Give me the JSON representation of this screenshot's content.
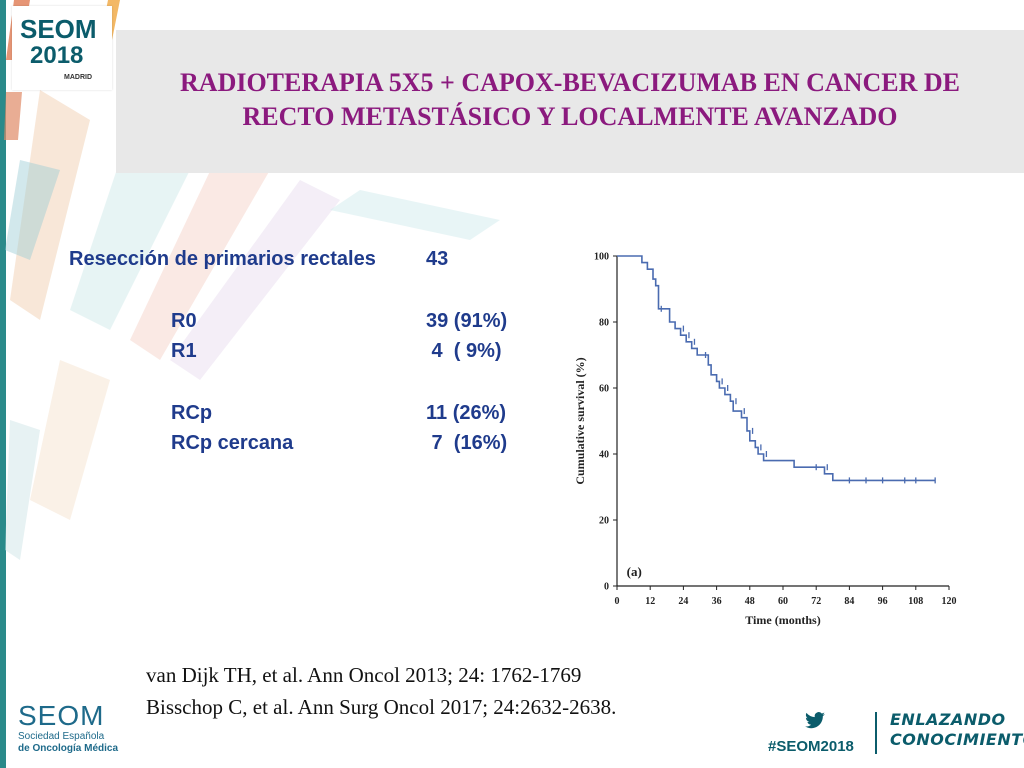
{
  "logo": {
    "brand": "SEOM",
    "year": "2018",
    "city": "MADRID"
  },
  "title_line1": "RADIOTERAPIA 5X5 + CAPOX-BEVACIZUMAB EN CANCER DE",
  "title_line2": "RECTO METASTÁSICO Y LOCALMENTE AVANZADO",
  "table": {
    "header_label": "Resección de primarios rectales",
    "header_value": "43",
    "rows": [
      {
        "label": "R0",
        "value": "39 (91%)"
      },
      {
        "label": "R1",
        "value": " 4  ( 9%)"
      },
      {
        "label": "RCp",
        "value": "11 (26%)"
      },
      {
        "label": "RCp cercana",
        "value": " 7  (16%)"
      }
    ]
  },
  "references": [
    "van Dijk TH, et al. Ann Oncol 2013; 24: 1762-1769",
    "Bisschop C, et al. Ann Surg Oncol 2017; 24:2632-2638."
  ],
  "footer": {
    "brand": "SEOM",
    "sub_line1": "Sociedad  Española",
    "sub_line2": "de Oncología Médica",
    "hashtag": "#SEOM2018",
    "slogan_line1": "ENLAZANDO",
    "slogan_line2": "CONOCIMIENTO"
  },
  "colors": {
    "title": "#8b1a7e",
    "table_text": "#1f3b8c",
    "curve": "#4a6bb0",
    "teal": "#0b5c6b"
  },
  "chart_data": {
    "type": "line",
    "panel_label": "(a)",
    "xlabel": "Time (months)",
    "ylabel": "Cumulative survival (%)",
    "xlim": [
      0,
      120
    ],
    "ylim": [
      0,
      100
    ],
    "xticks": [
      0,
      12,
      24,
      36,
      48,
      60,
      72,
      84,
      96,
      108,
      120
    ],
    "yticks": [
      0,
      20,
      40,
      60,
      80,
      100
    ],
    "step_curve": [
      [
        0,
        100
      ],
      [
        9,
        100
      ],
      [
        9,
        98
      ],
      [
        11,
        98
      ],
      [
        11,
        96
      ],
      [
        13,
        96
      ],
      [
        13,
        93
      ],
      [
        14,
        93
      ],
      [
        14,
        91
      ],
      [
        15,
        91
      ],
      [
        15,
        84
      ],
      [
        19,
        84
      ],
      [
        19,
        80
      ],
      [
        21,
        80
      ],
      [
        21,
        78
      ],
      [
        23,
        78
      ],
      [
        23,
        76
      ],
      [
        25,
        76
      ],
      [
        25,
        74
      ],
      [
        27,
        74
      ],
      [
        27,
        72
      ],
      [
        29,
        72
      ],
      [
        29,
        70
      ],
      [
        33,
        70
      ],
      [
        33,
        67
      ],
      [
        34,
        67
      ],
      [
        34,
        64
      ],
      [
        36,
        64
      ],
      [
        36,
        62
      ],
      [
        37,
        62
      ],
      [
        37,
        60
      ],
      [
        39,
        60
      ],
      [
        39,
        58
      ],
      [
        41,
        58
      ],
      [
        41,
        56
      ],
      [
        42,
        56
      ],
      [
        42,
        53
      ],
      [
        45,
        53
      ],
      [
        45,
        51
      ],
      [
        47,
        51
      ],
      [
        47,
        47
      ],
      [
        48,
        47
      ],
      [
        48,
        44
      ],
      [
        50,
        44
      ],
      [
        50,
        42
      ],
      [
        51,
        42
      ],
      [
        51,
        40
      ],
      [
        53,
        40
      ],
      [
        53,
        38
      ],
      [
        64,
        38
      ],
      [
        64,
        36
      ],
      [
        75,
        36
      ],
      [
        75,
        34
      ],
      [
        78,
        34
      ],
      [
        78,
        32
      ],
      [
        115,
        32
      ]
    ],
    "censor_marks": [
      [
        16,
        84
      ],
      [
        24,
        78
      ],
      [
        26,
        76
      ],
      [
        28,
        74
      ],
      [
        32,
        70
      ],
      [
        38,
        62
      ],
      [
        40,
        60
      ],
      [
        43,
        56
      ],
      [
        46,
        53
      ],
      [
        49,
        47
      ],
      [
        52,
        42
      ],
      [
        54,
        40
      ],
      [
        72,
        36
      ],
      [
        76,
        36
      ],
      [
        84,
        32
      ],
      [
        90,
        32
      ],
      [
        96,
        32
      ],
      [
        104,
        32
      ],
      [
        108,
        32
      ],
      [
        115,
        32
      ]
    ]
  }
}
